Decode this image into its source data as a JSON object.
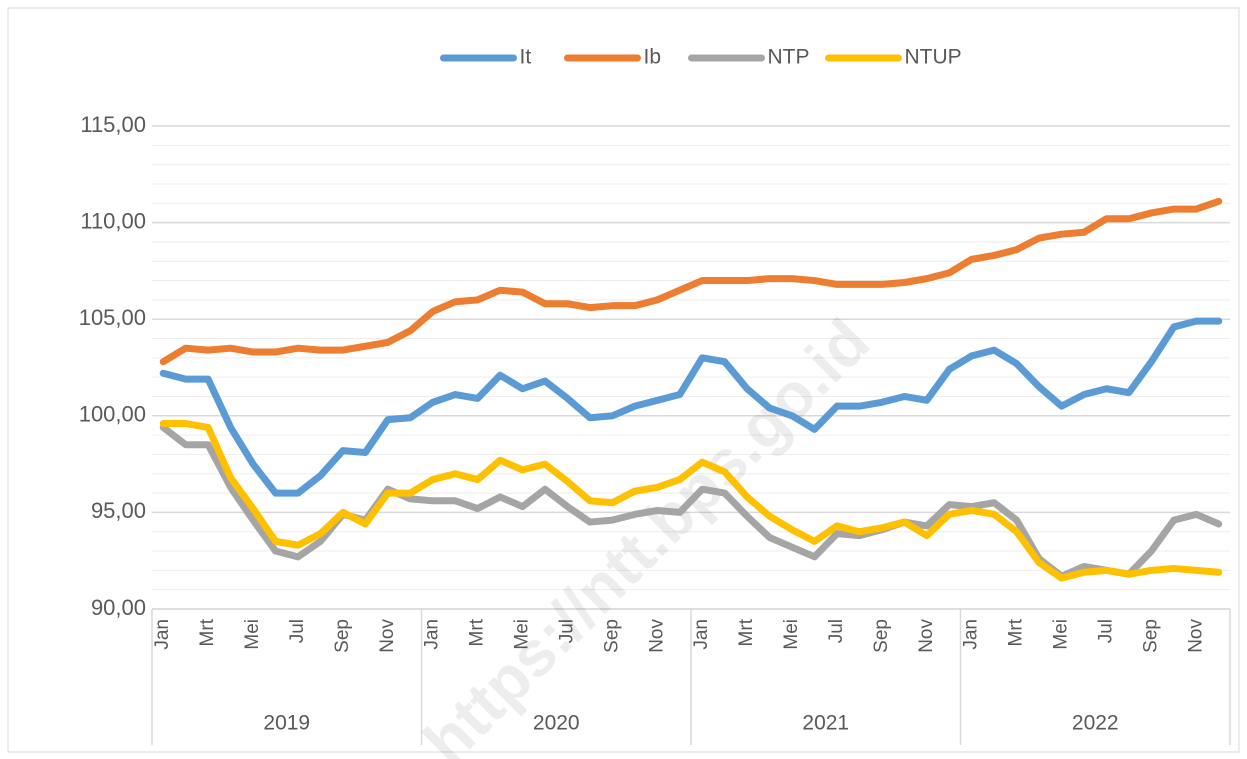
{
  "chart_data": {
    "type": "line",
    "categories": [
      "Jan",
      null,
      "Mrt",
      null,
      "Mei",
      null,
      "Jul",
      null,
      "Sep",
      null,
      "Nov",
      null,
      "Jan",
      null,
      "Mrt",
      null,
      "Mei",
      null,
      "Jul",
      null,
      "Sep",
      null,
      "Nov",
      null,
      "Jan",
      null,
      "Mrt",
      null,
      "Mei",
      null,
      "Jul",
      null,
      "Sep",
      null,
      "Nov",
      null,
      "Jan",
      null,
      "Mrt",
      null,
      "Mei",
      null,
      "Jul",
      null,
      "Sep",
      null,
      "Nov",
      null
    ],
    "year_groups": [
      "2019",
      "2020",
      "2021",
      "2022"
    ],
    "series": [
      {
        "name": "It",
        "color": "#5b9bd5",
        "values": [
          102.2,
          101.9,
          101.9,
          99.4,
          97.5,
          96.0,
          96.0,
          96.9,
          98.2,
          98.1,
          99.8,
          99.9,
          100.7,
          101.1,
          100.9,
          102.1,
          101.4,
          101.8,
          100.9,
          99.9,
          100.0,
          100.5,
          100.8,
          101.1,
          103.0,
          102.8,
          101.4,
          100.4,
          100.0,
          99.3,
          100.5,
          100.5,
          100.7,
          101.0,
          100.8,
          102.4,
          103.1,
          103.4,
          102.7,
          101.5,
          100.5,
          101.1,
          101.4,
          101.2,
          102.8,
          104.6,
          104.9,
          104.9
        ]
      },
      {
        "name": "Ib",
        "color": "#ed7d31",
        "values": [
          102.8,
          103.5,
          103.4,
          103.5,
          103.3,
          103.3,
          103.5,
          103.4,
          103.4,
          103.6,
          103.8,
          104.4,
          105.4,
          105.9,
          106.0,
          106.5,
          106.4,
          105.8,
          105.8,
          105.6,
          105.7,
          105.7,
          106.0,
          106.5,
          107.0,
          107.0,
          107.0,
          107.1,
          107.1,
          107.0,
          106.8,
          106.8,
          106.8,
          106.9,
          107.1,
          107.4,
          108.1,
          108.3,
          108.6,
          109.2,
          109.4,
          109.5,
          110.2,
          110.2,
          110.5,
          110.7,
          110.7,
          111.1
        ]
      },
      {
        "name": "NTP",
        "color": "#a5a5a5",
        "values": [
          99.4,
          98.5,
          98.5,
          96.3,
          94.6,
          93.0,
          92.7,
          93.5,
          94.9,
          94.6,
          96.2,
          95.7,
          95.6,
          95.6,
          95.2,
          95.8,
          95.3,
          96.2,
          95.3,
          94.5,
          94.6,
          94.9,
          95.1,
          95.0,
          96.2,
          96.0,
          94.8,
          93.7,
          93.2,
          92.7,
          93.9,
          93.8,
          94.1,
          94.5,
          94.3,
          95.4,
          95.3,
          95.5,
          94.6,
          92.6,
          91.7,
          92.2,
          92.0,
          91.8,
          93.0,
          94.6,
          94.9,
          94.4
        ]
      },
      {
        "name": "NTUP",
        "color": "#ffc000",
        "values": [
          99.6,
          99.6,
          99.4,
          96.8,
          95.2,
          93.5,
          93.3,
          93.9,
          95.0,
          94.4,
          96.0,
          96.0,
          96.7,
          97.0,
          96.7,
          97.7,
          97.2,
          97.5,
          96.6,
          95.6,
          95.5,
          96.1,
          96.3,
          96.7,
          97.6,
          97.1,
          95.8,
          94.8,
          94.1,
          93.5,
          94.3,
          94.0,
          94.2,
          94.5,
          93.8,
          94.9,
          95.1,
          94.9,
          94.0,
          92.4,
          91.6,
          91.9,
          92.0,
          91.8,
          92.0,
          92.1,
          92.0,
          91.9
        ]
      }
    ],
    "ylim": [
      90,
      115
    ],
    "yticks": [
      {
        "value": 90,
        "label": "90,00"
      },
      {
        "value": 95,
        "label": "95,00"
      },
      {
        "value": 100,
        "label": "100,00"
      },
      {
        "value": 105,
        "label": "105,00"
      },
      {
        "value": 110,
        "label": "110,00"
      },
      {
        "value": 115,
        "label": "115,00"
      }
    ],
    "grid": true,
    "minor_grid_step": 1,
    "legend": "top",
    "watermark": "https://ntt.bps.go.id"
  }
}
